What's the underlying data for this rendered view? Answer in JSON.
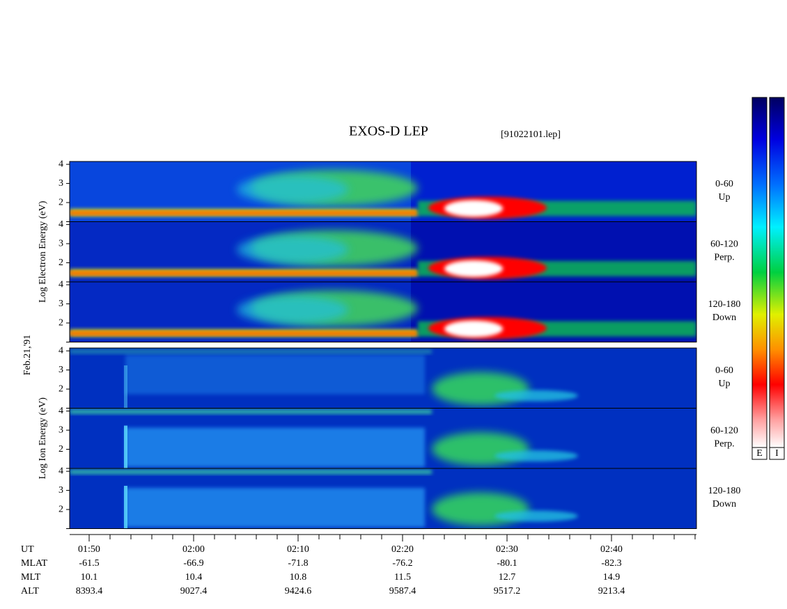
{
  "chart_data": {
    "type": "spectrogram",
    "title": "EXOS-D LEP",
    "subtitle": "[91022101.lep]",
    "date_label": "Feb.21,'91",
    "groups": [
      {
        "ylabel": "Log Electron Energy (eV)",
        "panels": [
          {
            "label": "0-60",
            "sublabel": "Up"
          },
          {
            "label": "60-120",
            "sublabel": "Perp."
          },
          {
            "label": "120-180",
            "sublabel": "Down"
          }
        ]
      },
      {
        "ylabel": "Log Ion Energy (eV)",
        "panels": [
          {
            "label": "0-60",
            "sublabel": "Up"
          },
          {
            "label": "60-120",
            "sublabel": "Perp."
          },
          {
            "label": "120-180",
            "sublabel": "Down"
          }
        ]
      }
    ],
    "ylim": [
      1,
      4.15
    ],
    "yticks": [
      2,
      3,
      4
    ],
    "ephemeris": {
      "labels": [
        "UT",
        "MLAT",
        "MLT",
        "ALT"
      ],
      "rows": [
        [
          "01:50",
          "02:00",
          "02:10",
          "02:20",
          "02:30",
          "02:40"
        ],
        [
          "-61.5",
          "-66.9",
          "-71.8",
          "-76.2",
          "-80.1",
          "-82.3"
        ],
        [
          "10.1",
          "10.4",
          "10.8",
          "11.5",
          "12.7",
          "14.9"
        ],
        [
          "8393.4",
          "9027.4",
          "9424.6",
          "9587.4",
          "9517.2",
          "9213.4"
        ]
      ]
    },
    "colorbars": [
      "E",
      "I"
    ]
  }
}
